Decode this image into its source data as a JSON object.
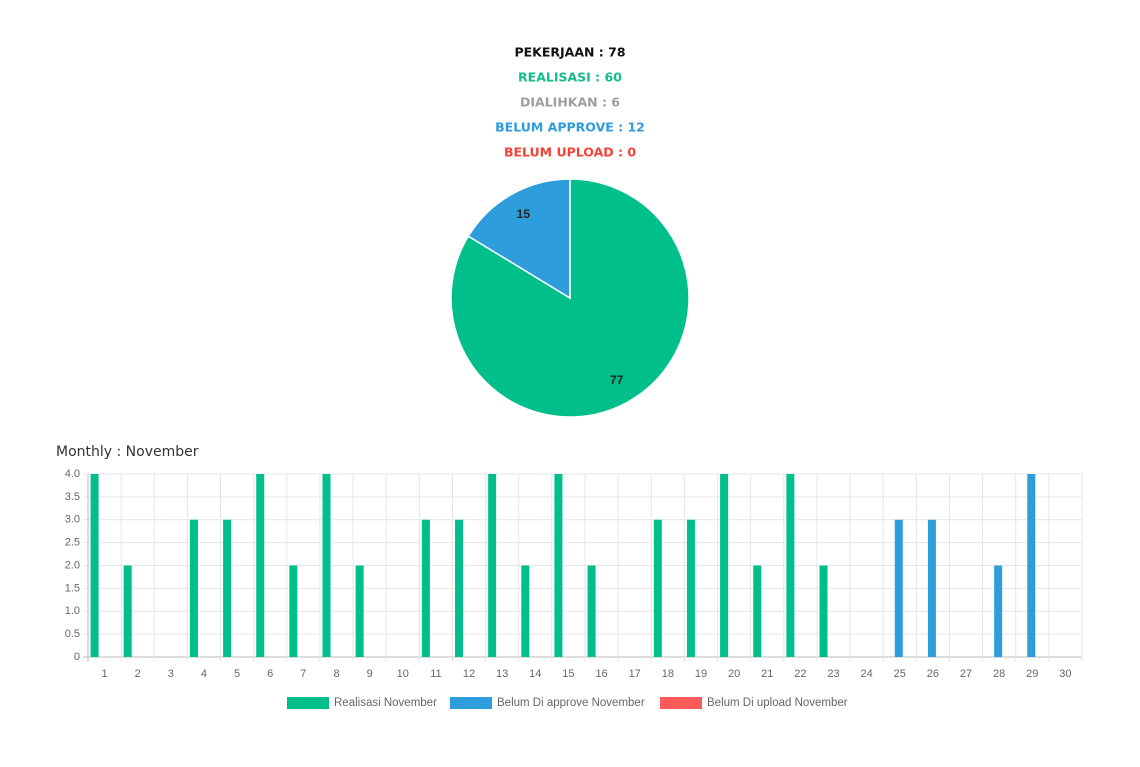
{
  "summary": [
    {
      "text": "PEKERJAAN : 78",
      "color": "#111111"
    },
    {
      "text": "REALISASI : 60",
      "color": "#13bd8a"
    },
    {
      "text": "DIALIHKAN : 6",
      "color": "#9e9e9e"
    },
    {
      "text": "BELUM APPROVE : 12",
      "color": "#2f9bdc"
    },
    {
      "text": "BELUM UPLOAD : 0",
      "color": "#f44336"
    }
  ],
  "chart_data": [
    {
      "type": "pie",
      "values": [
        77,
        15
      ],
      "colors": [
        "#00bf8a",
        "#2e9ddb"
      ]
    },
    {
      "type": "bar",
      "title": "Monthly : November",
      "categories": [
        "1",
        "2",
        "3",
        "4",
        "5",
        "6",
        "7",
        "8",
        "9",
        "10",
        "11",
        "12",
        "13",
        "14",
        "15",
        "16",
        "17",
        "18",
        "19",
        "20",
        "21",
        "22",
        "23",
        "24",
        "25",
        "26",
        "27",
        "28",
        "29",
        "30"
      ],
      "series": [
        {
          "name": "Realisasi November",
          "color": "#00bf8a",
          "values": [
            4,
            2,
            0,
            3,
            3,
            4,
            2,
            4,
            2,
            0,
            3,
            3,
            4,
            2,
            4,
            2,
            0,
            3,
            3,
            4,
            2,
            4,
            2,
            0,
            0,
            0,
            0,
            0,
            0,
            0
          ]
        },
        {
          "name": "Belum Di approve November",
          "color": "#2e9ddb",
          "values": [
            0,
            0,
            0,
            0,
            0,
            0,
            0,
            0,
            0,
            0,
            0,
            0,
            0,
            0,
            0,
            0,
            0,
            0,
            0,
            0,
            0,
            0,
            0,
            0,
            3,
            3,
            0,
            2,
            4,
            0
          ]
        },
        {
          "name": "Belum Di upload November",
          "color": "#ff5a5a",
          "values": [
            0,
            0,
            0,
            0,
            0,
            0,
            0,
            0,
            0,
            0,
            0,
            0,
            0,
            0,
            0,
            0,
            0,
            0,
            0,
            0,
            0,
            0,
            0,
            0,
            0,
            0,
            0,
            0,
            0,
            0
          ]
        }
      ],
      "ylim": [
        0,
        4
      ],
      "yticks": [
        0,
        0.5,
        {
          "value": 1,
          "label": "1.0"
        },
        1.5,
        {
          "value": 2,
          "label": "2.0"
        },
        2.5,
        {
          "value": 3,
          "label": "3.0"
        },
        3.5,
        {
          "value": 4,
          "label": "4.0"
        }
      ],
      "grid": true
    }
  ]
}
